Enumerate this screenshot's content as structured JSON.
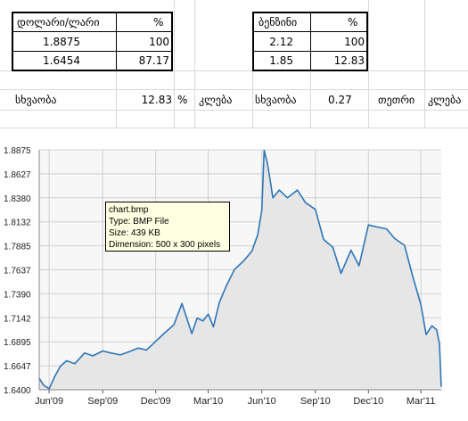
{
  "sheet": {
    "table1": {
      "header": [
        "დოლარი/ლარი",
        "%"
      ],
      "rows": [
        [
          "1.8875",
          "100"
        ],
        [
          "1.6454",
          "87.17"
        ]
      ]
    },
    "table2": {
      "header": [
        "ბენზინი",
        "%"
      ],
      "rows": [
        [
          "2.12",
          "100"
        ],
        [
          "1.85",
          "12.83"
        ]
      ]
    },
    "row5": {
      "c1": "სხვაობა",
      "c2": "12.83",
      "c3": "%",
      "c4": "კლება",
      "c5": "სხვაობა",
      "c6": "0.27",
      "c7": "თეთრი",
      "c8": "კლება"
    }
  },
  "tooltip": {
    "name": "chart.bmp",
    "type": "Type: BMP File",
    "size": "Size: 439 KB",
    "dimension": "Dimension: 500 x 300 pixels"
  },
  "colors": {
    "line": "#2e75b6",
    "fill": "#e6e6e6",
    "grid": "#d0d0d0"
  },
  "chart_data": {
    "type": "area",
    "title": "",
    "xlabel": "",
    "ylabel": "",
    "x_ticks": [
      "Jun'09",
      "Sep'09",
      "Dec'09",
      "Mar'10",
      "Jun'10",
      "Sep'10",
      "Dec'10",
      "Mar'11"
    ],
    "y_ticks": [
      "1.8875",
      "1.8627",
      "1.8380",
      "1.8132",
      "1.7885",
      "1.7637",
      "1.7390",
      "1.7142",
      "1.6895",
      "1.6647",
      "1.6400"
    ],
    "ylim": [
      1.64,
      1.8875
    ],
    "xlim": [
      "2009-05-15",
      "2011-04-05"
    ],
    "series": [
      {
        "x": [
          "2009-05-15",
          "2009-05-22",
          "2009-06-01",
          "2009-06-10",
          "2009-06-20",
          "2009-07-01",
          "2009-07-15",
          "2009-08-01",
          "2009-08-15",
          "2009-09-01",
          "2009-09-15",
          "2009-10-01",
          "2009-10-15",
          "2009-11-01",
          "2009-11-15",
          "2009-12-01",
          "2009-12-15",
          "2010-01-01",
          "2010-01-15",
          "2010-02-01",
          "2010-02-10",
          "2010-02-20",
          "2010-03-01",
          "2010-03-10",
          "2010-03-20",
          "2010-04-01",
          "2010-04-15",
          "2010-05-01",
          "2010-05-15",
          "2010-05-25",
          "2010-06-01",
          "2010-06-05",
          "2010-06-10",
          "2010-06-15",
          "2010-06-20",
          "2010-07-01",
          "2010-07-15",
          "2010-08-01",
          "2010-08-15",
          "2010-09-01",
          "2010-09-15",
          "2010-10-01",
          "2010-10-15",
          "2010-11-01",
          "2010-11-15",
          "2010-12-01",
          "2010-12-15",
          "2011-01-01",
          "2011-01-15",
          "2011-02-01",
          "2011-02-15",
          "2011-03-01",
          "2011-03-10",
          "2011-03-20",
          "2011-03-28",
          "2011-04-02",
          "2011-04-05"
        ],
        "values": [
          1.652,
          1.645,
          1.641,
          1.653,
          1.664,
          1.67,
          1.667,
          1.678,
          1.675,
          1.68,
          1.678,
          1.676,
          1.679,
          1.683,
          1.681,
          1.69,
          1.698,
          1.707,
          1.729,
          1.698,
          1.714,
          1.711,
          1.718,
          1.705,
          1.73,
          1.747,
          1.764,
          1.773,
          1.783,
          1.8,
          1.825,
          1.887,
          1.875,
          1.858,
          1.838,
          1.846,
          1.838,
          1.846,
          1.833,
          1.826,
          1.795,
          1.787,
          1.76,
          1.784,
          1.768,
          1.81,
          1.808,
          1.806,
          1.796,
          1.789,
          1.757,
          1.728,
          1.697,
          1.706,
          1.702,
          1.687,
          1.643
        ]
      }
    ],
    "grid": true,
    "legend": "none"
  }
}
